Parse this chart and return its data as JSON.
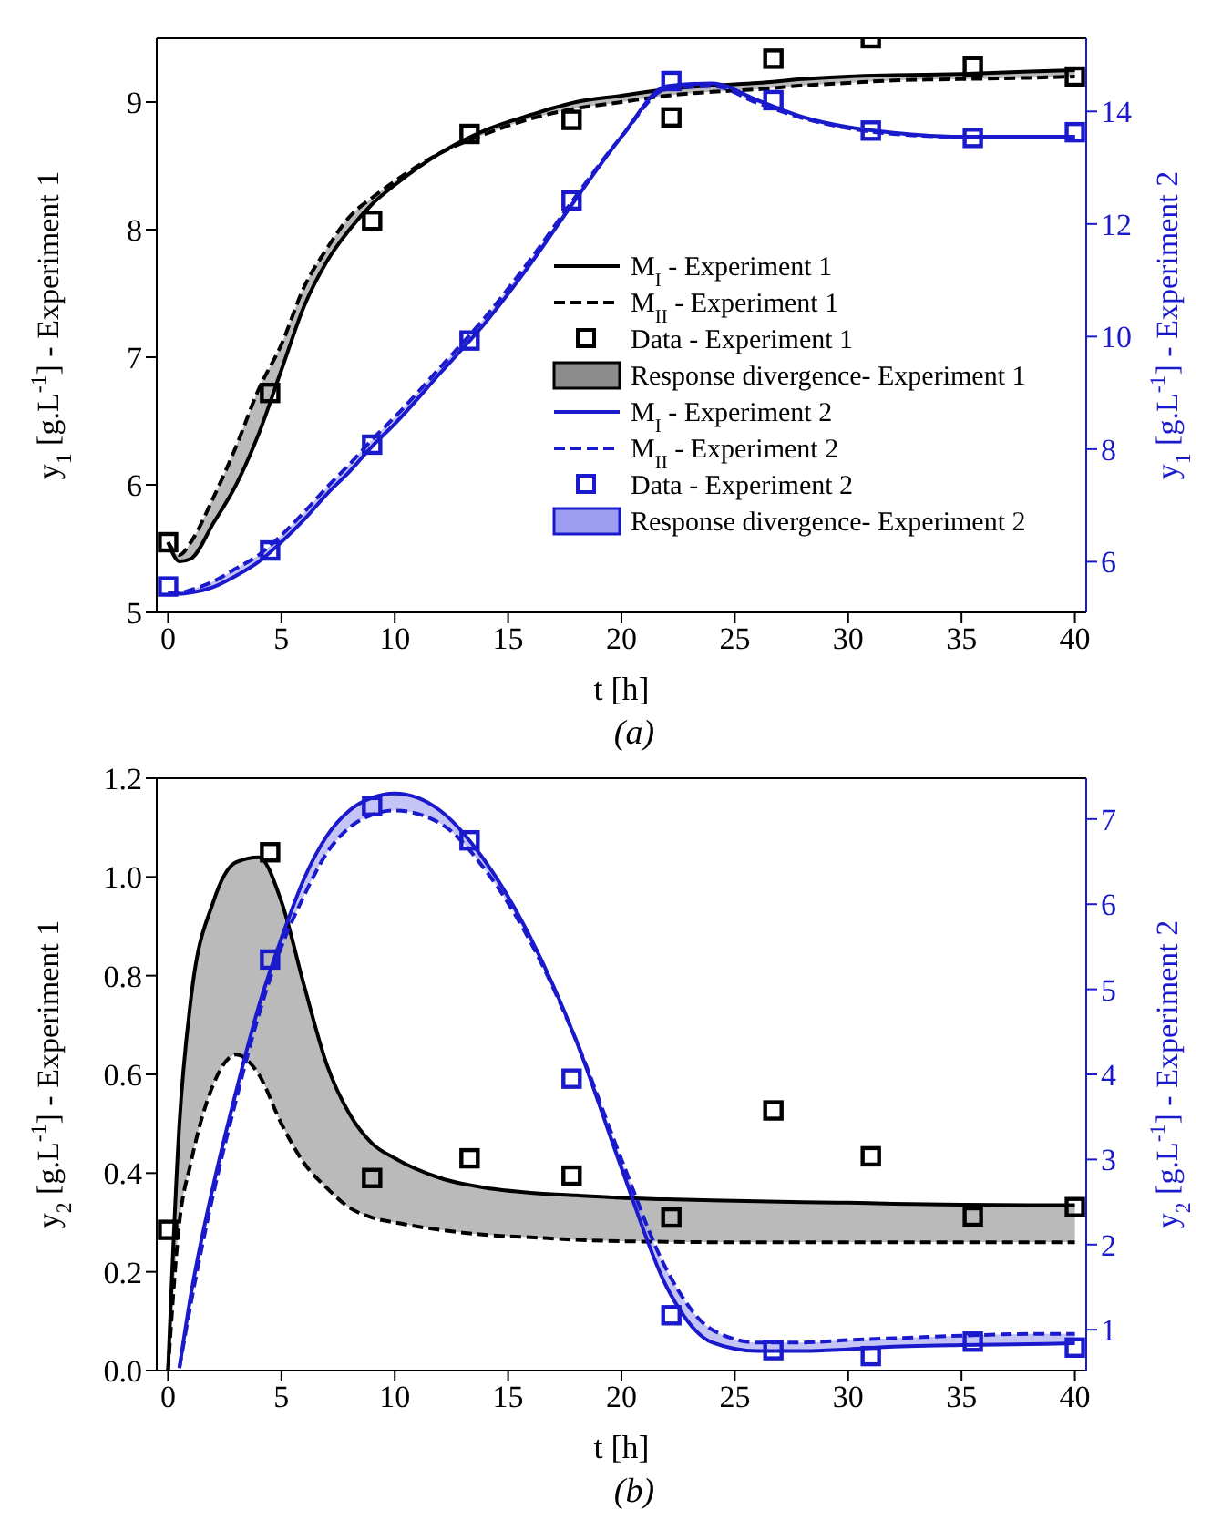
{
  "chart_data": [
    {
      "type": "line",
      "xlabel": "t [h]",
      "ylabel": "y$_{1}$ [g.L$^{-1}$] - Experiment 1",
      "y2label": "y$_{1}$ [g.L$^{-1}$] - Experiment 2",
      "annotations": [
        "(a)"
      ],
      "x": [
        0,
        0.5,
        1,
        2,
        3,
        4,
        5,
        6,
        7,
        8,
        9,
        10,
        12,
        14,
        16,
        18,
        20,
        22,
        24,
        26,
        28,
        30,
        32,
        35,
        38,
        40
      ],
      "xlim": [
        -0.5,
        40.5
      ],
      "xticks": [
        0,
        5,
        10,
        15,
        20,
        25,
        30,
        35,
        40
      ],
      "ylim": [
        5,
        9.5
      ],
      "yticks": [
        5,
        6,
        7,
        8,
        9
      ],
      "y2lim": [
        5.1,
        15.3
      ],
      "y2ticks": [
        6,
        8,
        10,
        12,
        14
      ],
      "grid": false,
      "legend": "center right",
      "series": [
        {
          "name": "M$_{I}$ - Experiment 1",
          "line_style": "solid",
          "color": "#000000",
          "values": [
            5.55,
            5.4,
            5.42,
            5.7,
            6.0,
            6.4,
            6.9,
            7.4,
            7.75,
            8.0,
            8.2,
            8.35,
            8.6,
            8.78,
            8.9,
            9.0,
            9.05,
            9.1,
            9.13,
            9.15,
            9.18,
            9.2,
            9.21,
            9.22,
            9.24,
            9.25
          ]
        },
        {
          "name": "M$_{II}$ - Experiment 1",
          "line_style": "dashed",
          "color": "#000000",
          "values": [
            5.55,
            5.45,
            5.55,
            5.9,
            6.3,
            6.75,
            7.1,
            7.55,
            7.85,
            8.1,
            8.25,
            8.38,
            8.6,
            8.75,
            8.87,
            8.95,
            9.0,
            9.05,
            9.08,
            9.1,
            9.13,
            9.15,
            9.17,
            9.18,
            9.19,
            9.2
          ]
        },
        {
          "name": "Data - Experiment 1",
          "type": "scatter",
          "marker": "square",
          "color": "#000000",
          "x": [
            0,
            4.5,
            9,
            13.3,
            17.8,
            22.2,
            26.7,
            31,
            35.5,
            40
          ],
          "values": [
            5.55,
            6.72,
            8.07,
            8.75,
            8.86,
            8.88,
            9.34,
            9.5,
            9.28,
            9.2
          ]
        },
        {
          "name": "Response divergence- Experiment 1",
          "type": "area",
          "color": "#8c8c8c",
          "values": [
            null,
            null,
            null,
            null,
            null,
            null,
            null,
            null,
            null,
            null,
            null,
            null,
            null,
            null,
            null,
            null,
            null,
            null,
            null,
            null,
            null,
            null,
            null,
            null,
            null,
            null
          ],
          "lower": [
            5.55,
            5.45,
            5.55,
            5.9,
            6.3,
            6.75,
            7.1,
            7.55,
            7.85,
            8.1,
            8.25,
            8.38,
            8.6,
            8.75,
            8.87,
            8.95,
            9.0,
            9.05,
            9.08,
            9.1,
            9.13,
            9.15,
            9.17,
            9.18,
            9.19,
            9.2
          ],
          "upper": [
            5.55,
            5.4,
            5.42,
            5.7,
            6.0,
            6.4,
            6.9,
            7.4,
            7.75,
            8.0,
            8.2,
            8.35,
            8.6,
            8.78,
            8.9,
            9.0,
            9.05,
            9.1,
            9.13,
            9.15,
            9.18,
            9.2,
            9.21,
            9.22,
            9.24,
            9.25
          ]
        },
        {
          "name": "M$_{I}$ - Experiment 2",
          "line_style": "solid",
          "axis": "y2",
          "color": "#1a1acc",
          "values": [
            5.45,
            5.43,
            5.45,
            5.55,
            5.75,
            6.0,
            6.35,
            6.75,
            7.2,
            7.6,
            8.05,
            8.45,
            9.35,
            10.25,
            11.3,
            12.45,
            13.55,
            14.45,
            14.5,
            14.2,
            13.9,
            13.72,
            13.62,
            13.55,
            13.55,
            13.55
          ]
        },
        {
          "name": "M$_{II}$ - Experiment 2",
          "line_style": "dashed",
          "axis": "y2",
          "color": "#1a1acc",
          "values": [
            5.45,
            5.45,
            5.5,
            5.65,
            5.88,
            6.12,
            6.47,
            6.88,
            7.32,
            7.73,
            8.17,
            8.57,
            9.45,
            10.35,
            11.38,
            12.5,
            13.55,
            14.4,
            14.45,
            14.15,
            13.88,
            13.7,
            13.6,
            13.55,
            13.55,
            13.55
          ]
        },
        {
          "name": "Data - Experiment 2",
          "type": "scatter",
          "marker": "square",
          "axis": "y2",
          "color": "#1a1acc",
          "x": [
            0,
            4.5,
            9,
            13.3,
            17.8,
            22.2,
            26.7,
            31,
            35.5,
            40
          ],
          "values": [
            5.56,
            6.2,
            8.08,
            9.93,
            12.42,
            14.54,
            14.2,
            13.66,
            13.53,
            13.63
          ]
        },
        {
          "name": "Response divergence- Experiment 2",
          "type": "area",
          "axis": "y2",
          "color": "#9c9cf0",
          "values": [
            null,
            null,
            null,
            null,
            null,
            null,
            null,
            null,
            null,
            null,
            null,
            null,
            null,
            null,
            null,
            null,
            null,
            null,
            null,
            null,
            null,
            null,
            null,
            null,
            null,
            null
          ],
          "lower": [
            5.45,
            5.45,
            5.5,
            5.65,
            5.88,
            6.12,
            6.47,
            6.88,
            7.32,
            7.73,
            8.17,
            8.57,
            9.45,
            10.35,
            11.38,
            12.5,
            13.55,
            14.4,
            14.45,
            14.15,
            13.88,
            13.7,
            13.6,
            13.55,
            13.55,
            13.55
          ],
          "upper": [
            5.45,
            5.43,
            5.45,
            5.55,
            5.75,
            6.0,
            6.35,
            6.75,
            7.2,
            7.6,
            8.05,
            8.45,
            9.35,
            10.25,
            11.3,
            12.45,
            13.55,
            14.45,
            14.5,
            14.2,
            13.9,
            13.72,
            13.62,
            13.55,
            13.55,
            13.55
          ]
        }
      ]
    },
    {
      "type": "line",
      "xlabel": "t [h]",
      "ylabel": "y$_{2}$ [g.L$^{-1}$] - Experiment 1",
      "y2label": "y$_{2}$ [g.L$^{-1}$] - Experiment 2",
      "annotations": [
        "(b)"
      ],
      "x": [
        0,
        0.5,
        1,
        2,
        3,
        4,
        5,
        6,
        7,
        8,
        9,
        10,
        12,
        14,
        16,
        18,
        20,
        22,
        24,
        26,
        28,
        30,
        32,
        35,
        38,
        40
      ],
      "xlim": [
        -0.5,
        40.5
      ],
      "xticks": [
        0,
        5,
        10,
        15,
        20,
        25,
        30,
        35,
        40
      ],
      "ylim": [
        0,
        1.2
      ],
      "yticks": [
        {
          "value": 0,
          "label": "0.0"
        },
        0.2,
        0.4,
        0.6,
        0.8,
        {
          "value": 1,
          "label": "1.0"
        },
        1.2
      ],
      "y2lim": [
        0.52,
        7.48
      ],
      "y2ticks": [
        1,
        2,
        3,
        4,
        5,
        6,
        7
      ],
      "grid": false,
      "legend": false,
      "series": [
        {
          "line_style": "solid",
          "color": "#000000",
          "values": [
            0,
            0.5,
            0.75,
            0.95,
            1.03,
            1.04,
            0.95,
            0.78,
            0.62,
            0.52,
            0.46,
            0.43,
            0.39,
            0.37,
            0.36,
            0.355,
            0.35,
            0.347,
            0.345,
            0.343,
            0.341,
            0.34,
            0.338,
            0.336,
            0.335,
            0.335
          ]
        },
        {
          "line_style": "dashed",
          "color": "#000000",
          "values": [
            0,
            0.3,
            0.42,
            0.58,
            0.64,
            0.6,
            0.5,
            0.42,
            0.37,
            0.33,
            0.31,
            0.3,
            0.285,
            0.275,
            0.27,
            0.265,
            0.262,
            0.261,
            0.26,
            0.26,
            0.26,
            0.26,
            0.26,
            0.26,
            0.26,
            0.26
          ]
        },
        {
          "type": "scatter",
          "marker": "square",
          "color": "#000000",
          "x": [
            0,
            4.5,
            9,
            13.3,
            17.8,
            22.2,
            26.7,
            31,
            35.5,
            40
          ],
          "values": [
            0.285,
            1.05,
            0.39,
            0.43,
            0.395,
            0.31,
            0.527,
            0.434,
            0.312,
            0.331
          ]
        },
        {
          "type": "area",
          "color": "#8c8c8c",
          "values": [
            null,
            null,
            null,
            null,
            null,
            null,
            null,
            null,
            null,
            null,
            null,
            null,
            null,
            null,
            null,
            null,
            null,
            null,
            null,
            null,
            null,
            null,
            null,
            null,
            null,
            null
          ],
          "lower": [
            0,
            0.3,
            0.42,
            0.58,
            0.64,
            0.6,
            0.5,
            0.42,
            0.37,
            0.33,
            0.31,
            0.3,
            0.285,
            0.275,
            0.27,
            0.265,
            0.262,
            0.261,
            0.26,
            0.26,
            0.26,
            0.26,
            0.26,
            0.26,
            0.26,
            0.26
          ],
          "upper": [
            0,
            0.5,
            0.75,
            0.95,
            1.03,
            1.04,
            0.95,
            0.78,
            0.62,
            0.52,
            0.46,
            0.43,
            0.39,
            0.37,
            0.36,
            0.355,
            0.35,
            0.347,
            0.345,
            0.343,
            0.341,
            0.34,
            0.338,
            0.336,
            0.335,
            0.335
          ]
        },
        {
          "line_style": "solid",
          "axis": "y2",
          "color": "#1a1acc",
          "values": [
            null,
            0.55,
            1.4,
            2.7,
            3.8,
            4.8,
            5.6,
            6.3,
            6.8,
            7.1,
            7.25,
            7.3,
            7.1,
            6.5,
            5.6,
            4.4,
            2.9,
            1.5,
            0.85,
            0.75,
            0.75,
            0.77,
            0.8,
            0.82,
            0.83,
            0.84
          ]
        },
        {
          "line_style": "dashed",
          "axis": "y2",
          "color": "#1a1acc",
          "values": [
            null,
            0.55,
            1.3,
            2.6,
            3.7,
            4.7,
            5.5,
            6.1,
            6.6,
            6.9,
            7.05,
            7.1,
            6.95,
            6.4,
            5.55,
            4.4,
            3.0,
            1.7,
            1.0,
            0.85,
            0.85,
            0.88,
            0.9,
            0.93,
            0.95,
            0.95
          ]
        },
        {
          "type": "scatter",
          "marker": "square",
          "axis": "y2",
          "color": "#1a1acc",
          "x": [
            4.5,
            9,
            13.3,
            17.8,
            22.2,
            26.7,
            31,
            35.5,
            40
          ],
          "values": [
            5.35,
            7.15,
            6.75,
            3.95,
            1.17,
            0.76,
            0.69,
            0.86,
            0.79
          ]
        },
        {
          "type": "area",
          "axis": "y2",
          "color": "#9c9cf0",
          "values": [
            null,
            null,
            null,
            null,
            null,
            null,
            null,
            null,
            null,
            null,
            null,
            null,
            null,
            null,
            null,
            null,
            null,
            null,
            null,
            null,
            null,
            null,
            null,
            null,
            null,
            null
          ],
          "lower": [
            null,
            0.55,
            1.3,
            2.6,
            3.7,
            4.7,
            5.5,
            6.1,
            6.6,
            6.9,
            7.05,
            7.1,
            6.95,
            6.4,
            5.55,
            4.4,
            3.0,
            1.7,
            1.0,
            0.85,
            0.85,
            0.88,
            0.9,
            0.93,
            0.95,
            0.95
          ],
          "upper": [
            null,
            0.55,
            1.4,
            2.7,
            3.8,
            4.8,
            5.6,
            6.3,
            6.8,
            7.1,
            7.25,
            7.3,
            7.1,
            6.5,
            5.6,
            4.4,
            2.9,
            1.5,
            0.85,
            0.75,
            0.75,
            0.77,
            0.8,
            0.82,
            0.83,
            0.84
          ]
        }
      ]
    }
  ]
}
